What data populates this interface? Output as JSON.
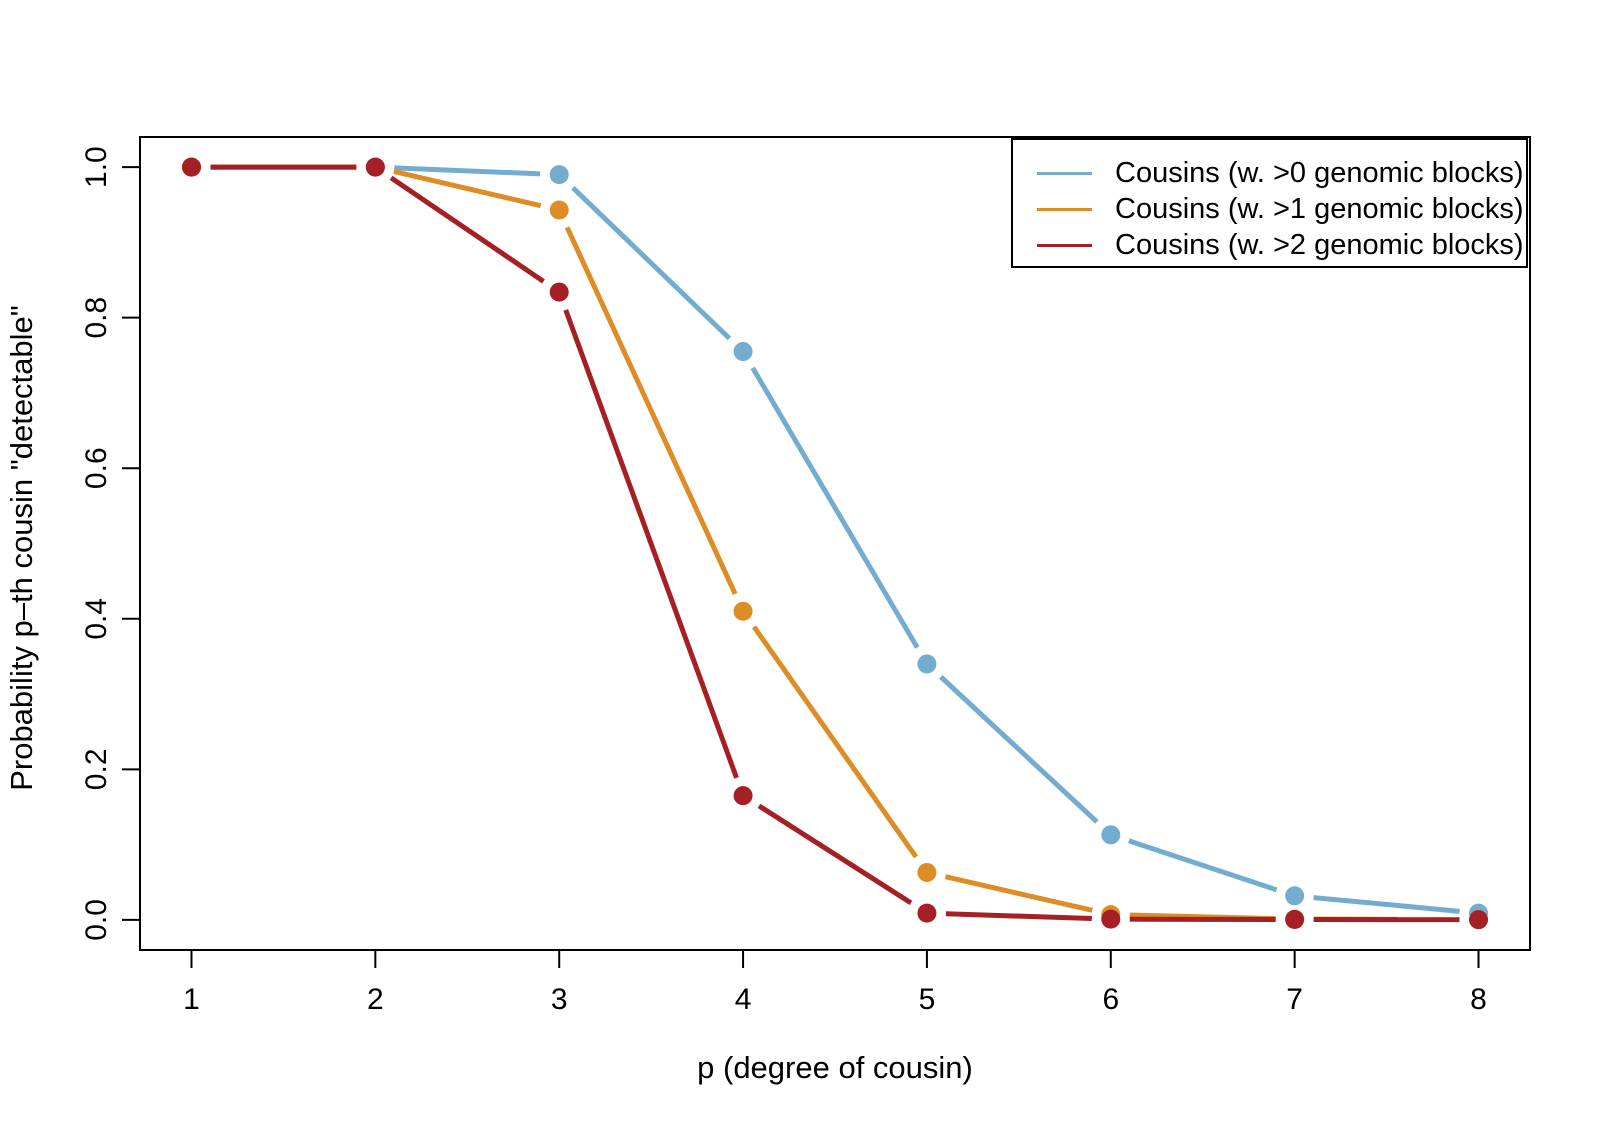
{
  "figure": {
    "background_color": "#ffffff",
    "axis_color": "#000000",
    "text_color": "#000000"
  },
  "chart_data": {
    "type": "line",
    "title": "",
    "xlabel": "p (degree of cousin)",
    "ylabel": "Probability p–th cousin \"detectable\"",
    "line_type": "b (line segments broken with gaps around filled circle markers)",
    "grid": false,
    "legend_position": "top-right",
    "x": [
      1,
      2,
      3,
      4,
      5,
      6,
      7,
      8
    ],
    "xtick_labels": [
      "1",
      "2",
      "3",
      "4",
      "5",
      "6",
      "7",
      "8"
    ],
    "yticks": [
      0.0,
      0.2,
      0.4,
      0.6,
      0.8,
      1.0
    ],
    "ytick_labels": [
      "0.0",
      "0.2",
      "0.4",
      "0.6",
      "0.8",
      "1.0"
    ],
    "xlim": [
      0.72,
      8.28
    ],
    "ylim": [
      -0.04,
      1.04
    ],
    "series": [
      {
        "name": "Cousins (w. >0 genomic blocks)",
        "color": "#74ACCF",
        "values": [
          1.0,
          1.0,
          0.99,
          0.755,
          0.34,
          0.113,
          0.032,
          0.009
        ]
      },
      {
        "name": "Cousins (w. >1 genomic blocks)",
        "color": "#DE8C26",
        "values": [
          1.0,
          1.0,
          0.943,
          0.41,
          0.063,
          0.007,
          0.001,
          0.0005
        ]
      },
      {
        "name": "Cousins (w. >2 genomic blocks)",
        "color": "#A42024",
        "values": [
          1.0,
          1.0,
          0.834,
          0.165,
          0.009,
          0.001,
          0.0005,
          0.0003
        ]
      }
    ]
  }
}
